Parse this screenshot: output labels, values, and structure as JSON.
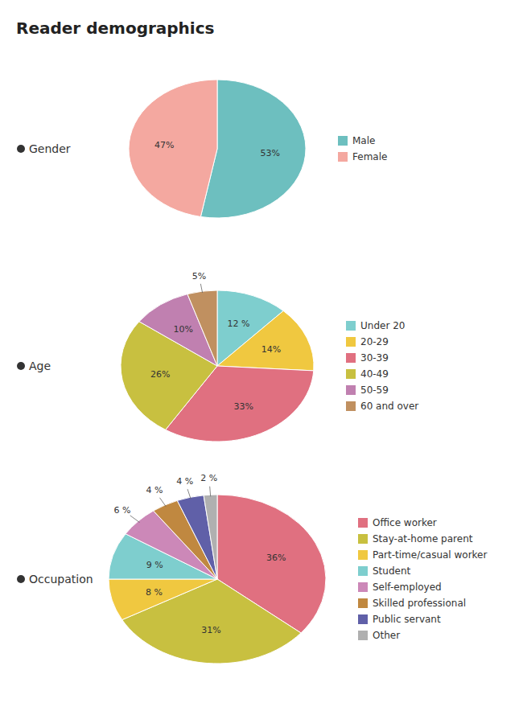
{
  "title": "Reader demographics",
  "chart_data": [
    {
      "type": "pie",
      "title": "Gender",
      "categories": [
        "Male",
        "Female"
      ],
      "values": [
        53,
        47
      ],
      "value_labels": [
        "53%",
        "47%"
      ],
      "colors": [
        "#6dbfbf",
        "#f4a8a0"
      ],
      "legend": "right",
      "data_labels": true
    },
    {
      "type": "pie",
      "title": "Age",
      "categories": [
        "Under 20",
        "20-29",
        "30-39",
        "40-49",
        "50-59",
        "60 and over"
      ],
      "values": [
        12,
        14,
        33,
        26,
        10,
        5
      ],
      "value_labels": [
        "12 %",
        "14%",
        "33%",
        "26%",
        "10%",
        "5%"
      ],
      "colors": [
        "#7ecece",
        "#f0c840",
        "#e07080",
        "#c8c040",
        "#c080b0",
        "#c09060"
      ],
      "legend": "right",
      "data_labels": true
    },
    {
      "type": "pie",
      "title": "Occupation",
      "categories": [
        "Office worker",
        "Stay-at-home parent",
        "Part-time/casual worker",
        "Student",
        "Self-employed",
        "Skilled professional",
        "Public servant",
        "Other"
      ],
      "values": [
        36,
        31,
        8,
        9,
        6,
        4,
        4,
        2
      ],
      "value_labels": [
        "36%",
        "31%",
        "8 %",
        "9 %",
        "6 %",
        "4 %",
        "4 %",
        "2 %"
      ],
      "colors": [
        "#e07080",
        "#c8c040",
        "#f0c840",
        "#7ecece",
        "#cc88b8",
        "#c08840",
        "#6060a8",
        "#b0b0b0"
      ],
      "legend": "right",
      "data_labels": true
    }
  ]
}
